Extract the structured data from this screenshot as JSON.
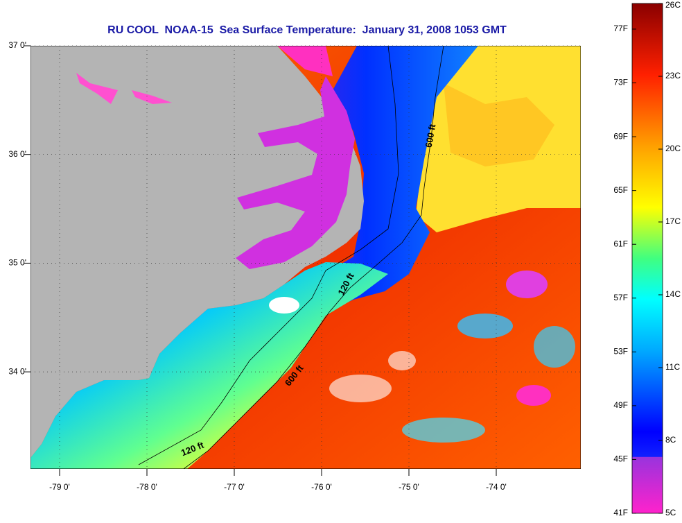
{
  "title": "RU COOL  NOAA-15  Sea Surface Temperature:  January 31, 2008 1053 GMT",
  "map": {
    "lat_ticks": [
      {
        "value": 37,
        "label": "37 0'"
      },
      {
        "value": 36,
        "label": "36 0'"
      },
      {
        "value": 35,
        "label": "35 0'"
      },
      {
        "value": 34,
        "label": "34 0'"
      }
    ],
    "lon_ticks": [
      {
        "value": -79,
        "label": "-79 0'"
      },
      {
        "value": -78,
        "label": "-78 0'"
      },
      {
        "value": -77,
        "label": "-77 0'"
      },
      {
        "value": -76,
        "label": "-76 0'"
      },
      {
        "value": -75,
        "label": "-75 0'"
      },
      {
        "value": -74,
        "label": "-74 0'"
      }
    ],
    "contour_labels": [
      "600 ft",
      "120 ft",
      "600 ft",
      "120 ft"
    ]
  },
  "colorbar": {
    "fahrenheit": [
      {
        "value": 77,
        "label": "77F"
      },
      {
        "value": 73,
        "label": "73F"
      },
      {
        "value": 69,
        "label": "69F"
      },
      {
        "value": 65,
        "label": "65F"
      },
      {
        "value": 61,
        "label": "61F"
      },
      {
        "value": 57,
        "label": "57F"
      },
      {
        "value": 53,
        "label": "53F"
      },
      {
        "value": 49,
        "label": "49F"
      },
      {
        "value": 45,
        "label": "45F"
      },
      {
        "value": 41,
        "label": "41F"
      }
    ],
    "celsius": [
      {
        "value": 26,
        "label": "26C"
      },
      {
        "value": 23,
        "label": "23C"
      },
      {
        "value": 20,
        "label": "20C"
      },
      {
        "value": 17,
        "label": "17C"
      },
      {
        "value": 14,
        "label": "14C"
      },
      {
        "value": 11,
        "label": "11C"
      },
      {
        "value": 8,
        "label": "8C"
      },
      {
        "value": 5,
        "label": "5C"
      }
    ]
  }
}
